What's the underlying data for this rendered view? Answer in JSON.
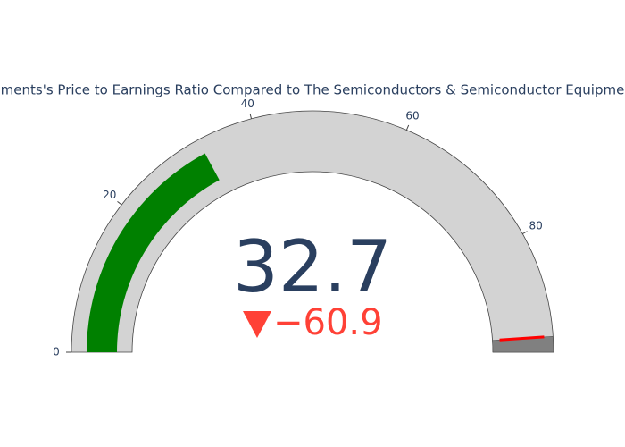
{
  "chart_data": {
    "type": "gauge",
    "title": "ments's Price to Earnings Ratio Compared to The Semiconductors & Semiconductor Equipme",
    "value": 32.7,
    "delta": {
      "value": -60.9,
      "label": "−60.9"
    },
    "reference": 93.6,
    "range": [
      0,
      95.6
    ],
    "ticks": [
      0,
      20,
      40,
      60,
      80
    ],
    "bar_color": "green",
    "background_color": "lightgray",
    "steps": [
      {
        "range": [
          93.6,
          95.6
        ],
        "color": "gray"
      }
    ],
    "threshold": {
      "value": 93.6,
      "color": "red"
    },
    "decreasing_color": "#ff4136"
  }
}
